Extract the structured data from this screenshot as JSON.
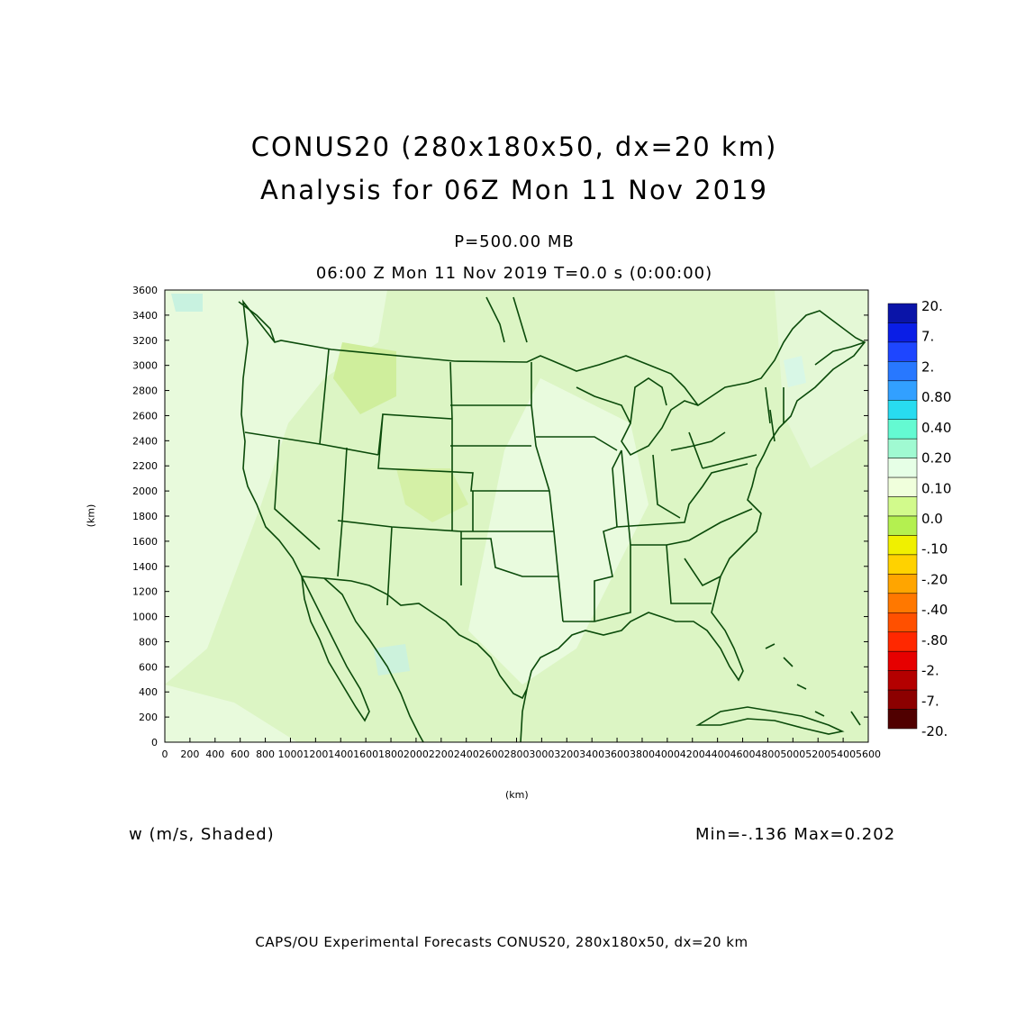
{
  "title": {
    "line1": "CONUS20 (280x180x50, dx=20 km)",
    "line2": "Analysis for 06Z Mon 11 Nov 2019"
  },
  "subtitle": {
    "level": "P=500.00 MB",
    "time": "06:00 Z Mon 11 Nov 2019    T=0.0 s (0:00:00)"
  },
  "axes": {
    "xlabel": "(km)",
    "ylabel": "(km)",
    "x_ticks": [
      "0",
      "200",
      "400",
      "600",
      "800",
      "1000",
      "1200",
      "1400",
      "1600",
      "1800",
      "2000",
      "2200",
      "2400",
      "2600",
      "2800",
      "3000",
      "3200",
      "3400",
      "3600",
      "3800",
      "4000",
      "4200",
      "4400",
      "4600",
      "4800",
      "5000",
      "5200",
      "5400",
      "5600"
    ],
    "y_ticks": [
      "0",
      "200",
      "400",
      "600",
      "800",
      "1000",
      "1200",
      "1400",
      "1600",
      "1800",
      "2000",
      "2200",
      "2400",
      "2600",
      "2800",
      "3000",
      "3200",
      "3400",
      "3600"
    ],
    "xlim": [
      0,
      5600
    ],
    "ylim": [
      0,
      3600
    ]
  },
  "field": {
    "label": "w (m/s, Shaded)",
    "stats": "Min=-.136  Max=0.202"
  },
  "colorbar": {
    "labels": [
      "20.",
      "7.",
      "2.",
      "0.80",
      "0.40",
      "0.20",
      "0.10",
      "0.0",
      "-.10",
      "-.20",
      "-.40",
      "-.80",
      "-2.",
      "-7.",
      "-20."
    ],
    "colors": [
      "#0a14a8",
      "#0a1ee6",
      "#1e46ff",
      "#2878ff",
      "#32a0ff",
      "#28dcf0",
      "#64fad2",
      "#a0fad2",
      "#e6ffe6",
      "#f0ffdc",
      "#d2fa8c",
      "#b4f050",
      "#f0f000",
      "#ffd200",
      "#ffa500",
      "#ff7800",
      "#ff5000",
      "#ff2800",
      "#e60000",
      "#b40000",
      "#8c0000",
      "#500000"
    ]
  },
  "map": {
    "background_color": "#e6fad2",
    "outline_color": "#0a4a0a"
  },
  "footer": "CAPS/OU Experimental Forecasts  CONUS20, 280x180x50, dx=20 km"
}
